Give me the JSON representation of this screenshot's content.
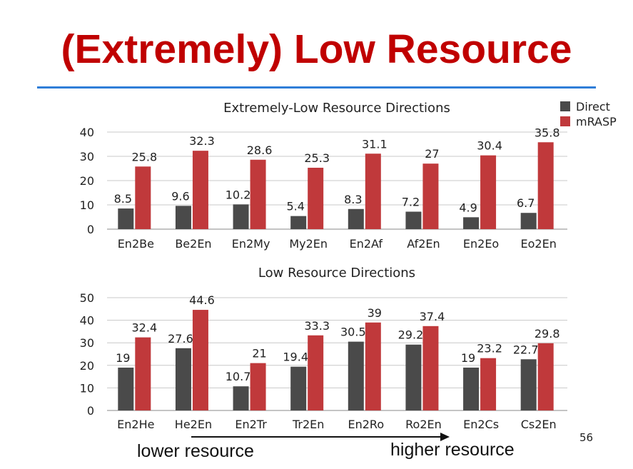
{
  "slide": {
    "title": "(Extremely) Low Resource",
    "page_number": "56",
    "footer_left": "lower resource",
    "footer_right": "higher resource"
  },
  "colors": {
    "title": "#c00000",
    "rule": "#2f7ed8",
    "direct": "#4a4a4a",
    "mrasp": "#c0393b"
  },
  "chart_data": [
    {
      "type": "bar",
      "title": "Extremely-Low Resource Directions",
      "categories": [
        "En2Be",
        "Be2En",
        "En2My",
        "My2En",
        "En2Af",
        "Af2En",
        "En2Eo",
        "Eo2En"
      ],
      "series": [
        {
          "name": "Direct",
          "values": [
            8.5,
            9.6,
            10.2,
            5.4,
            8.3,
            7.2,
            4.9,
            6.7
          ]
        },
        {
          "name": "mRASP",
          "values": [
            25.8,
            32.3,
            28.6,
            25.3,
            31.1,
            27,
            30.4,
            35.8
          ]
        }
      ],
      "ylim": [
        0,
        40
      ],
      "yticks": [
        "0",
        "10",
        "20",
        "30",
        "40"
      ],
      "grid": true,
      "legend": "top-right"
    },
    {
      "type": "bar",
      "title": "Low Resource Directions",
      "categories": [
        "En2He",
        "He2En",
        "En2Tr",
        "Tr2En",
        "En2Ro",
        "Ro2En",
        "En2Cs",
        "Cs2En"
      ],
      "series": [
        {
          "name": "Direct",
          "values": [
            19,
            27.6,
            10.7,
            19.4,
            30.5,
            29.2,
            19,
            22.7
          ]
        },
        {
          "name": "mRASP",
          "values": [
            32.4,
            44.6,
            21,
            33.3,
            39,
            37.4,
            23.2,
            29.8
          ]
        }
      ],
      "ylim": [
        0,
        50
      ],
      "yticks": [
        "0",
        "10",
        "20",
        "30",
        "40",
        "50"
      ],
      "grid": true,
      "legend": "none"
    }
  ]
}
